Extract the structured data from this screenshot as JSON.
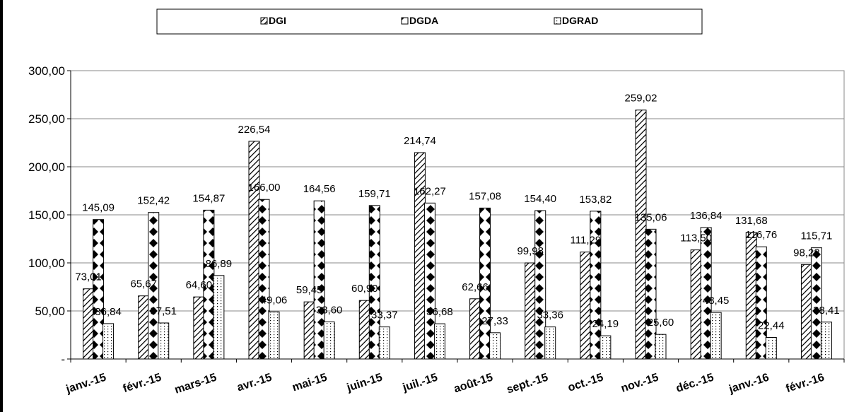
{
  "chart_data": {
    "type": "bar",
    "categories": [
      "janv.-15",
      "févr.-15",
      "mars-15",
      "avr.-15",
      "mai-15",
      "juin-15",
      "juil.-15",
      "août-15",
      "sept.-15",
      "oct.-15",
      "nov.-15",
      "déc.-15",
      "janv.-16",
      "févr.-16"
    ],
    "series": [
      {
        "name": "DGI",
        "values": [
          73.01,
          65.67,
          64.6,
          226.54,
          59.45,
          60.9,
          214.74,
          62.66,
          99.98,
          111.29,
          259.02,
          113.5,
          131.68,
          98.28
        ],
        "labels": [
          "73,01",
          "65,67",
          "64,60",
          "226,54",
          "59,45",
          "60,90",
          "214,74",
          "62,66",
          "99,98",
          "111,29",
          "259,02",
          "113,50",
          "131,68",
          "98,28"
        ]
      },
      {
        "name": "DGDA",
        "values": [
          145.09,
          152.42,
          154.87,
          166.0,
          164.56,
          159.71,
          162.27,
          157.08,
          154.4,
          153.82,
          135.06,
          136.84,
          116.76,
          115.71
        ],
        "labels": [
          "145,09",
          "152,42",
          "154,87",
          "166,00",
          "164,56",
          "159,71",
          "162,27",
          "157,08",
          "154,40",
          "153,82",
          "135,06",
          "136,84",
          "116,76",
          "115,71"
        ]
      },
      {
        "name": "DGRAD",
        "values": [
          36.84,
          37.51,
          86.89,
          49.06,
          38.6,
          33.37,
          36.68,
          27.33,
          33.36,
          24.19,
          25.6,
          48.45,
          22.44,
          38.41
        ],
        "labels": [
          "36,84",
          "37,51",
          "86,89",
          "49,06",
          "38,60",
          "33,37",
          "36,68",
          "27,33",
          "33,36",
          "24,19",
          "25,60",
          "48,45",
          "22,44",
          "38,41"
        ]
      }
    ],
    "y_ticks": [
      0,
      50,
      100,
      150,
      200,
      250,
      300
    ],
    "y_tick_labels": [
      "-",
      "50,00",
      "100,00",
      "150,00",
      "200,00",
      "250,00",
      "300,00"
    ],
    "ylim": [
      0,
      300
    ],
    "grid": true,
    "legend_position": "top",
    "title": "",
    "xlabel": "",
    "ylabel": ""
  }
}
